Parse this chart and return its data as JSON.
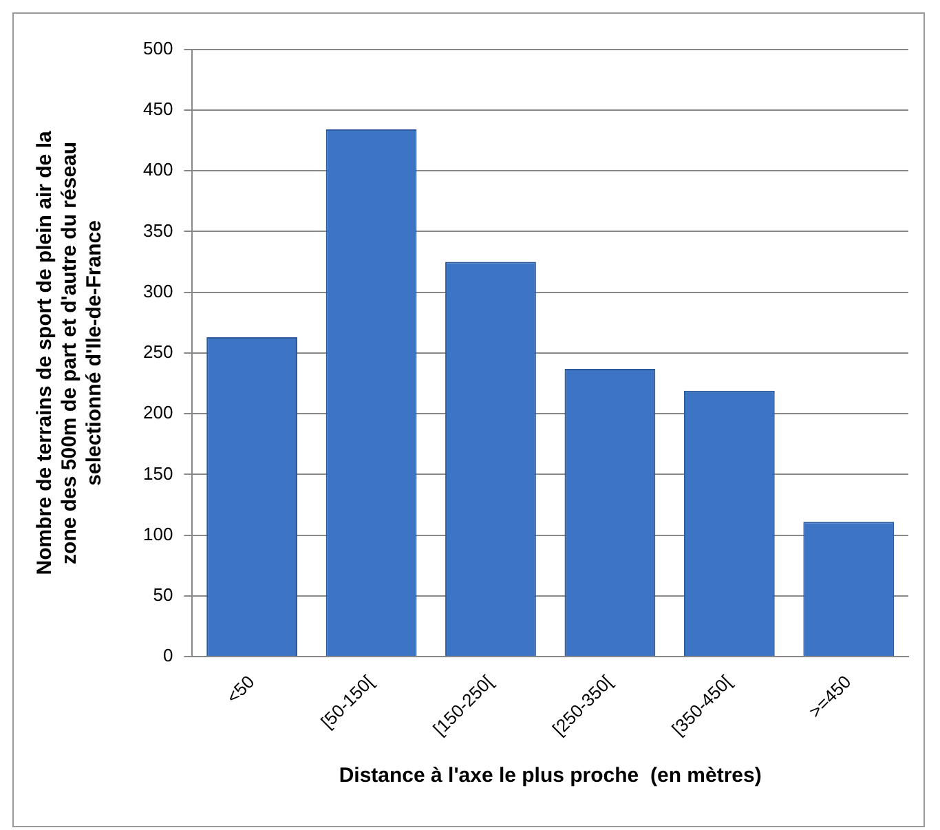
{
  "chart_data": {
    "type": "bar",
    "xlabel": "Distance à l'axe le plus proche  (en mètres)",
    "ylabel": "Nombre de terrains de sport de plein air de la\nzone des 500m de part et d'autre du réseau\nselectionné d'Ile-de-France",
    "categories": [
      "<50",
      "[50-150[",
      "[150-250[",
      "[250-350[",
      "[350-450[",
      ">=450"
    ],
    "values": [
      263,
      434,
      325,
      237,
      219,
      111
    ],
    "color": "#3d74c4",
    "ylim": [
      0,
      500
    ],
    "yticks": [
      0,
      50,
      100,
      150,
      200,
      250,
      300,
      350,
      400,
      450,
      500
    ],
    "grid": "y"
  }
}
